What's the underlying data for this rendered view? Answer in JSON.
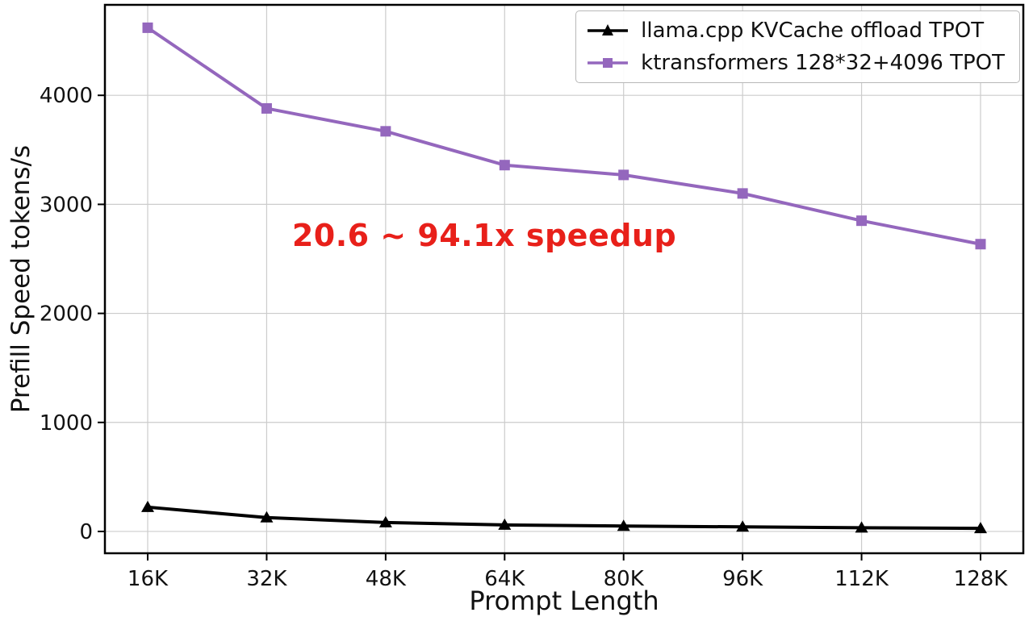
{
  "chart_data": {
    "type": "line",
    "title": "",
    "xlabel": "Prompt Length",
    "ylabel": "Prefill Speed tokens/s",
    "categories": [
      "16K",
      "32K",
      "48K",
      "64K",
      "80K",
      "96K",
      "112K",
      "128K"
    ],
    "series": [
      {
        "name": "llama.cpp KVCache offload TPOT",
        "color": "#000000",
        "marker": "triangle",
        "values": [
          223,
          127,
          82,
          60,
          50,
          42,
          34,
          28
        ]
      },
      {
        "name": "ktransformers 128*32+4096 TPOT",
        "color": "#9467bd",
        "marker": "square",
        "values": [
          4620,
          3880,
          3670,
          3360,
          3270,
          3100,
          2850,
          2635
        ]
      }
    ],
    "yticks": [
      0,
      1000,
      2000,
      3000,
      4000
    ],
    "ylim": [
      -200,
      4830
    ],
    "grid": true,
    "legend_position": "top-right",
    "annotation": {
      "text": "20.6 ~ 94.1x speedup",
      "color": "#e8201a"
    },
    "colors": {
      "grid": "#cccccc",
      "axis": "#000000",
      "background": "#ffffff"
    }
  }
}
